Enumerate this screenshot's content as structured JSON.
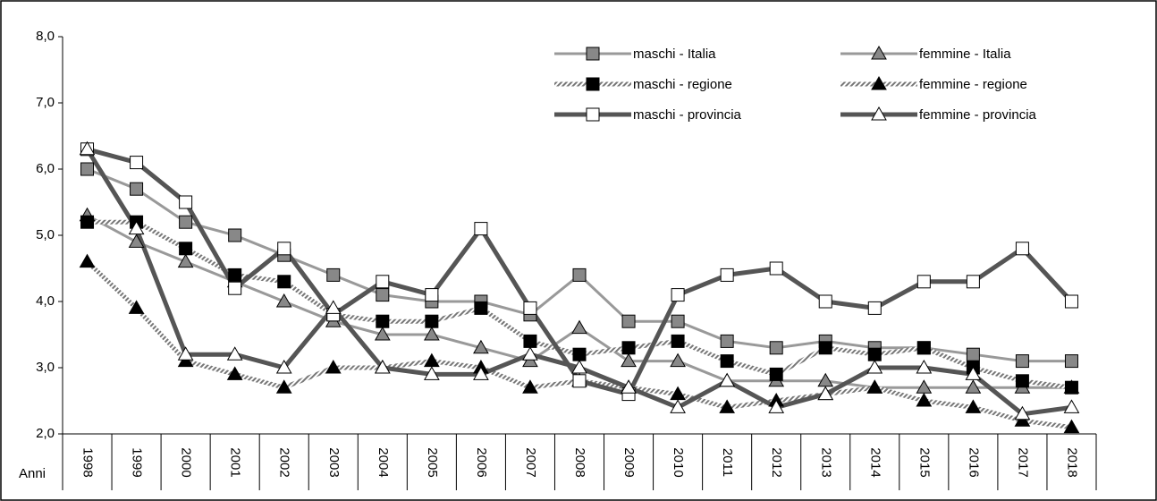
{
  "chart_data": {
    "type": "line",
    "categories": [
      "1998",
      "1999",
      "2000",
      "2001",
      "2002",
      "2003",
      "2004",
      "2005",
      "2006",
      "2007",
      "2008",
      "2009",
      "2010",
      "2011",
      "2012",
      "2013",
      "2014",
      "2015",
      "2016",
      "2017",
      "2018"
    ],
    "x_label": "Anni",
    "ylim": [
      2,
      8
    ],
    "yticks": [
      {
        "value": 2,
        "label": "2,0"
      },
      {
        "value": 3,
        "label": "3,0"
      },
      {
        "value": 4,
        "label": "4,0"
      },
      {
        "value": 5,
        "label": "5,0"
      },
      {
        "value": 6,
        "label": "6,0"
      },
      {
        "value": 7,
        "label": "7,0"
      },
      {
        "value": 8,
        "label": "8,0"
      }
    ],
    "legend": "top-right",
    "series": [
      {
        "name": "maschi - Italia",
        "color": "#999999",
        "line_style": "solid",
        "marker": "square",
        "marker_fill": "#888888",
        "values": [
          6.0,
          5.7,
          5.2,
          5.0,
          4.7,
          4.4,
          4.1,
          4.0,
          4.0,
          3.8,
          4.4,
          3.7,
          3.7,
          3.4,
          3.3,
          3.4,
          3.3,
          3.3,
          3.2,
          3.1,
          3.1
        ]
      },
      {
        "name": "femmine - Italia",
        "color": "#999999",
        "line_style": "solid",
        "marker": "triangle",
        "marker_fill": "#888888",
        "values": [
          5.3,
          4.9,
          4.6,
          4.3,
          4.0,
          3.7,
          3.5,
          3.5,
          3.3,
          3.1,
          3.6,
          3.1,
          3.1,
          2.8,
          2.8,
          2.8,
          2.7,
          2.7,
          2.7,
          2.7,
          2.7
        ]
      },
      {
        "name": "maschi - regione",
        "color": "#aaaaaa",
        "line_style": "hatched",
        "marker": "square",
        "marker_fill": "#000000",
        "values": [
          5.2,
          5.2,
          4.8,
          4.4,
          4.3,
          3.8,
          3.7,
          3.7,
          3.9,
          3.4,
          3.2,
          3.3,
          3.4,
          3.1,
          2.9,
          3.3,
          3.2,
          3.3,
          3.0,
          2.8,
          2.7
        ]
      },
      {
        "name": "femmine - regione",
        "color": "#aaaaaa",
        "line_style": "hatched",
        "marker": "triangle",
        "marker_fill": "#000000",
        "values": [
          4.6,
          3.9,
          3.1,
          2.9,
          2.7,
          3.0,
          3.0,
          3.1,
          3.0,
          2.7,
          2.8,
          2.7,
          2.6,
          2.4,
          2.5,
          2.6,
          2.7,
          2.5,
          2.4,
          2.2,
          2.1
        ]
      },
      {
        "name": "maschi - provincia",
        "color": "#555555",
        "line_style": "thick",
        "marker": "square",
        "marker_fill": "#ffffff",
        "values": [
          6.3,
          6.1,
          5.5,
          4.2,
          4.8,
          3.8,
          4.3,
          4.1,
          5.1,
          3.9,
          2.8,
          2.6,
          4.1,
          4.4,
          4.5,
          4.0,
          3.9,
          4.3,
          4.3,
          4.8,
          4.0
        ]
      },
      {
        "name": "femmine - provincia",
        "color": "#555555",
        "line_style": "thick",
        "marker": "triangle",
        "marker_fill": "#ffffff",
        "values": [
          6.3,
          5.1,
          3.2,
          3.2,
          3.0,
          3.9,
          3.0,
          2.9,
          2.9,
          3.2,
          3.0,
          2.7,
          2.4,
          2.8,
          2.4,
          2.6,
          3.0,
          3.0,
          2.9,
          2.3,
          2.4
        ]
      }
    ]
  }
}
